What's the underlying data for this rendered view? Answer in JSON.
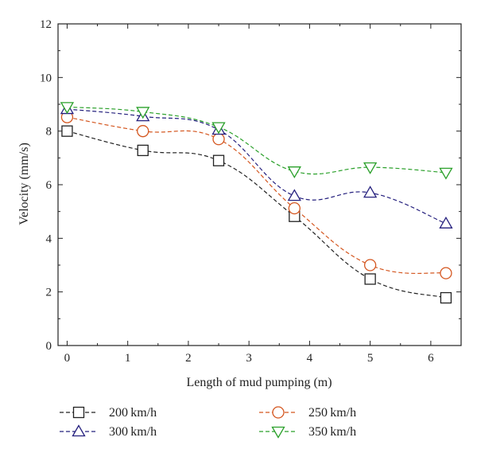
{
  "chart_data": {
    "type": "line",
    "xlabel": "Length of mud pumping (m)",
    "ylabel": "Velocity (mm/s)",
    "xlim": [
      -0.15,
      6.5
    ],
    "ylim": [
      0,
      12
    ],
    "xticks": [
      0,
      1,
      2,
      3,
      4,
      5,
      6
    ],
    "yticks": [
      0,
      2,
      4,
      6,
      8,
      10,
      12
    ],
    "grid": false,
    "legend_position": "bottom",
    "x": [
      0,
      1.25,
      2.5,
      3.75,
      5.0,
      6.25
    ],
    "series": [
      {
        "name": "200 km/h",
        "values": [
          8.0,
          7.28,
          6.9,
          4.82,
          2.48,
          1.78
        ],
        "color": "#222222",
        "marker": "square"
      },
      {
        "name": "250 km/h",
        "values": [
          8.52,
          8.0,
          7.7,
          5.12,
          3.0,
          2.7
        ],
        "color": "#d4561f",
        "marker": "circle"
      },
      {
        "name": "300 km/h",
        "values": [
          8.82,
          8.55,
          8.05,
          5.58,
          5.7,
          4.55
        ],
        "color": "#25207e",
        "marker": "triangle-up"
      },
      {
        "name": "350 km/h",
        "values": [
          8.9,
          8.72,
          8.15,
          6.5,
          6.65,
          6.45
        ],
        "color": "#2aa02a",
        "marker": "triangle-down"
      }
    ]
  }
}
